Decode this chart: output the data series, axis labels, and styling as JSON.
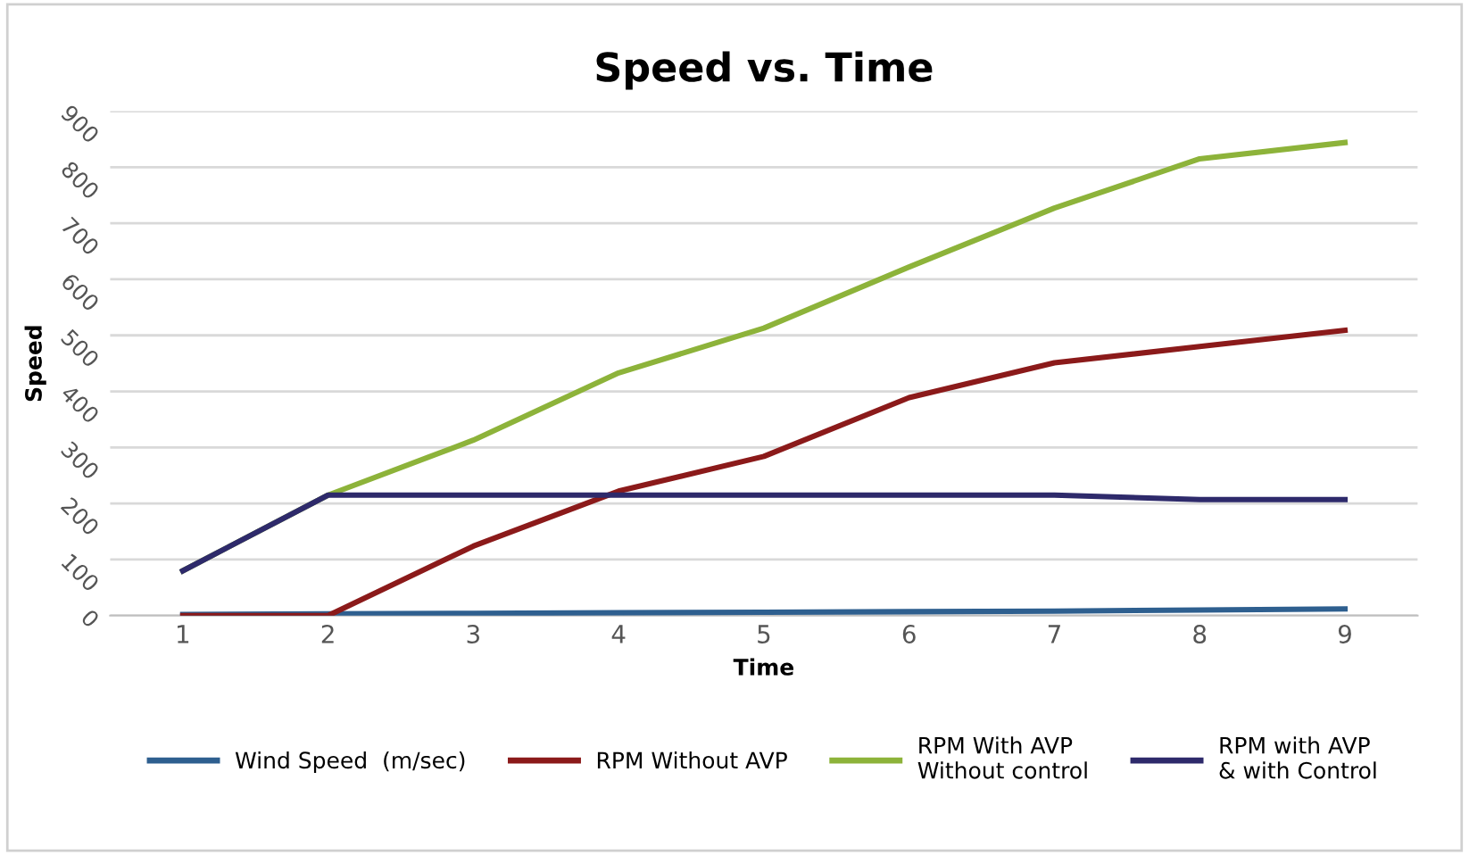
{
  "chart_data": {
    "type": "line",
    "title": "Speed vs. Time",
    "xlabel": "Time",
    "ylabel": "Speed",
    "categories": [
      "1",
      "2",
      "3",
      "4",
      "5",
      "6",
      "7",
      "8",
      "9"
    ],
    "series": [
      {
        "name": "Wind Speed  (m/sec)",
        "color": "#2e5f8f",
        "values": [
          2,
          3,
          4,
          5,
          6,
          7,
          8,
          10,
          12
        ]
      },
      {
        "name": "RPM Without AVP",
        "color": "#8b1a1a",
        "values": [
          0,
          0,
          124,
          222,
          284,
          389,
          451,
          480,
          509
        ]
      },
      {
        "name": "RPM With AVP\nWithout control",
        "color": "#8db33a",
        "values": [
          80,
          215,
          313,
          433,
          513,
          622,
          727,
          815,
          844
        ]
      },
      {
        "name": "RPM with AVP\n& with Control",
        "color": "#2e2a6b",
        "values": [
          80,
          215,
          215,
          215,
          215,
          215,
          215,
          207,
          207
        ]
      }
    ],
    "ylim": [
      0,
      900
    ],
    "yticks": [
      0,
      100,
      200,
      300,
      400,
      500,
      600,
      700,
      800,
      900
    ],
    "grid": "y",
    "legend": "bottom",
    "marker": "none",
    "line_style": "solid"
  }
}
